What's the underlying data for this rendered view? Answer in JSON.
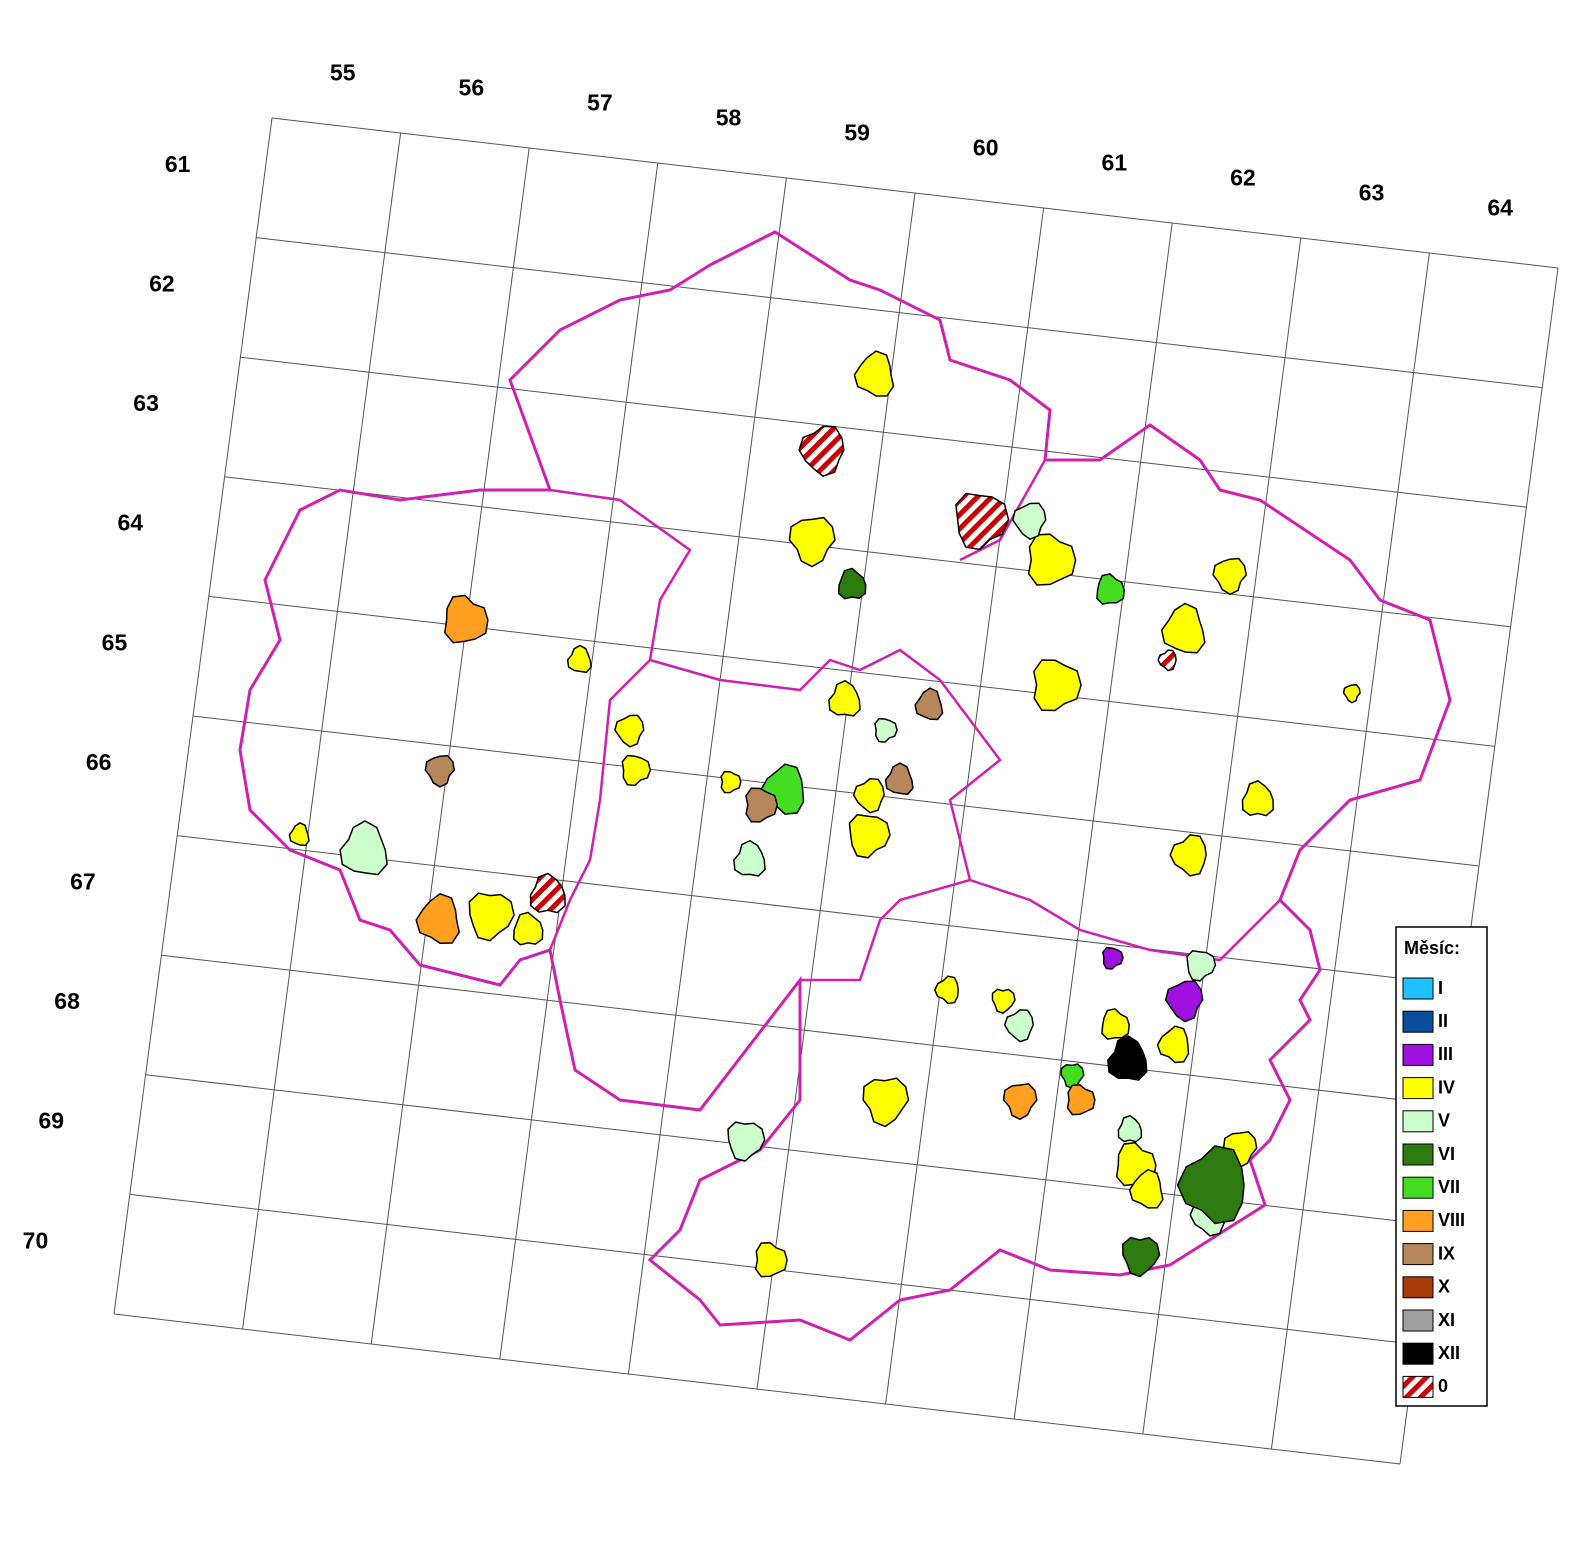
{
  "map": {
    "columns": [
      "55",
      "56",
      "57",
      "58",
      "59",
      "60",
      "61",
      "62",
      "63",
      "64"
    ],
    "rows": [
      "61",
      "62",
      "63",
      "64",
      "65",
      "66",
      "67",
      "68",
      "69",
      "70"
    ],
    "legend": {
      "title": "Měsíc:",
      "items": [
        {
          "label": "I",
          "color": "#1ec0ff"
        },
        {
          "label": "II",
          "color": "#0a4f9e"
        },
        {
          "label": "III",
          "color": "#a010e0"
        },
        {
          "label": "IV",
          "color": "#ffff00"
        },
        {
          "label": "V",
          "color": "#ccffcc"
        },
        {
          "label": "VI",
          "color": "#2d7a0e"
        },
        {
          "label": "VII",
          "color": "#44dd22"
        },
        {
          "label": "VIII",
          "color": "#ffa020"
        },
        {
          "label": "IX",
          "color": "#b5875a"
        },
        {
          "label": "X",
          "color": "#a83a0a"
        },
        {
          "label": "XI",
          "color": "#a0a0a0"
        },
        {
          "label": "XII",
          "color": "#000000"
        },
        {
          "label": "0",
          "color": "#cc0000"
        }
      ]
    }
  }
}
